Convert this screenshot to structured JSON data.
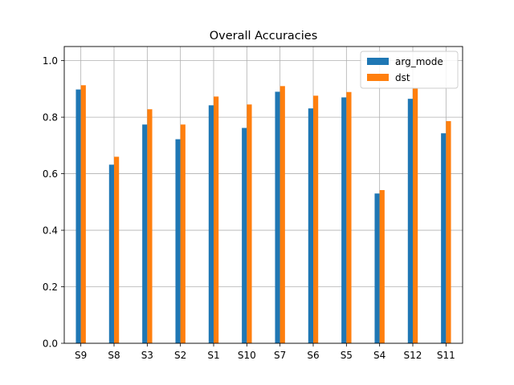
{
  "chart_data": {
    "type": "bar",
    "title": "Overall Accuracies",
    "xlabel": "",
    "ylabel": "",
    "categories": [
      "S9",
      "S8",
      "S3",
      "S2",
      "S1",
      "S10",
      "S7",
      "S6",
      "S5",
      "S4",
      "S12",
      "S11"
    ],
    "series": [
      {
        "name": "arg_mode",
        "color": "#1f77b4",
        "values": [
          0.898,
          0.632,
          0.774,
          0.722,
          0.842,
          0.762,
          0.89,
          0.831,
          0.87,
          0.53,
          0.865,
          0.743
        ]
      },
      {
        "name": "dst",
        "color": "#ff7f0e",
        "values": [
          0.913,
          0.66,
          0.828,
          0.774,
          0.873,
          0.845,
          0.91,
          0.876,
          0.889,
          0.542,
          0.902,
          0.786
        ]
      }
    ],
    "ylim": [
      0,
      1.05
    ],
    "yticks": [
      "0.0",
      "0.2",
      "0.4",
      "0.6",
      "0.8",
      "1.0"
    ],
    "grid": true,
    "legend_position": "top-right"
  }
}
